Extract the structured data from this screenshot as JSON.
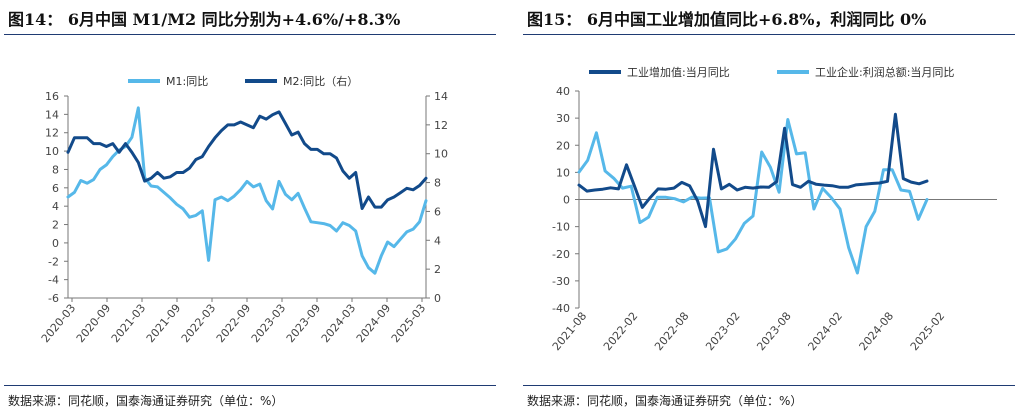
{
  "left": {
    "title": "图14：  6月中国 M1/M2 同比分别为+4.6%/+8.3%",
    "source": "数据来源：同花顺，国泰海通证券研究（单位：%）",
    "chart_data": {
      "type": "line",
      "colors": {
        "M1": "#56b8e9",
        "M2": "#124a8a"
      },
      "x_ticks": [
        "2020-03",
        "2020-09",
        "2021-03",
        "2021-09",
        "2022-03",
        "2022-09",
        "2023-03",
        "2023-09",
        "2024-03",
        "2024-09",
        "2025-03"
      ],
      "y_left_ticks": [
        "16",
        "14",
        "12",
        "10",
        "8",
        "6",
        "4",
        "2",
        "0",
        "-2",
        "-4",
        "-6"
      ],
      "y_right_ticks": [
        "14",
        "12",
        "10",
        "8",
        "6",
        "4",
        "2",
        "0"
      ],
      "ylim_left": [
        -6,
        16
      ],
      "ylim_right": [
        0,
        14
      ],
      "series": [
        {
          "name": "M1:同比",
          "axis": "left",
          "values": [
            5,
            5.5,
            6.8,
            6.5,
            6.9,
            8,
            8.5,
            9.4,
            10.1,
            10.5,
            11.5,
            14.7,
            7.1,
            6.2,
            6.1,
            5.5,
            4.9,
            4.2,
            3.7,
            2.8,
            3,
            3.5,
            -1.9,
            4.7,
            5,
            4.6,
            5.1,
            5.8,
            6.7,
            6.1,
            6.4,
            4.6,
            3.7,
            6.7,
            5.3,
            4.7,
            5.4,
            3.8,
            2.3,
            2.2,
            2.1,
            1.9,
            1.3,
            2.2,
            1.9,
            1.3,
            -1.4,
            -2.7,
            -3.3,
            -1.4,
            0.1,
            -0.4,
            0.4,
            1.2,
            1.5,
            2.3,
            4.6
          ]
        },
        {
          "name": "M2:同比（右）",
          "axis": "right",
          "values": [
            10.1,
            11.1,
            11.1,
            11.1,
            10.7,
            10.7,
            10.5,
            10.7,
            10.1,
            10.7,
            10.1,
            9.4,
            8.1,
            8.3,
            8.7,
            8.3,
            8.4,
            8.7,
            8.7,
            9.0,
            9.6,
            9.8,
            10.5,
            11.1,
            11.6,
            12,
            12,
            12.2,
            12,
            11.8,
            12.6,
            12.4,
            12.7,
            12.9,
            12.1,
            11.3,
            11.5,
            10.7,
            10.3,
            10.3,
            10.0,
            10.0,
            9.7,
            8.8,
            8.3,
            8.7,
            6.2,
            7.0,
            6.3,
            6.3,
            6.8,
            7.0,
            7.3,
            7.6,
            7.5,
            7.8,
            8.3
          ]
        }
      ]
    }
  },
  "right": {
    "title": "图15：  6月中国工业增加值同比+6.8%，利润同比 0%",
    "source": "数据来源：同花顺，国泰海通证券研究（单位：%）",
    "chart_data": {
      "type": "line",
      "colors": {
        "ip": "#124a8a",
        "profit": "#56b8e9"
      },
      "x_ticks": [
        "2021-08",
        "2022-02",
        "2022-08",
        "2023-02",
        "2023-08",
        "2024-02",
        "2024-08",
        "2025-02"
      ],
      "y_ticks": [
        "40",
        "30",
        "20",
        "10",
        "0",
        "-10",
        "-20",
        "-30",
        "-40"
      ],
      "ylim": [
        -40,
        40
      ],
      "series": [
        {
          "name": "工业增加值:当月同比",
          "values": [
            5.3,
            3.1,
            3.5,
            3.8,
            4.3,
            3.9,
            12.8,
            5,
            -2.9,
            0.7,
            3.9,
            3.8,
            4.2,
            6.3,
            5,
            -0.5,
            -10,
            18.5,
            3.9,
            5.6,
            3.5,
            4.5,
            4.2,
            4.6,
            4.5,
            6.6,
            26.3,
            5.5,
            4.5,
            6.7,
            5.6,
            5.3,
            5.1,
            4.5,
            4.5,
            5.4,
            5.6,
            5.9,
            6.1,
            6.7,
            31.4,
            7.7,
            6.4,
            5.8,
            6.8
          ]
        },
        {
          "name": "工业企业:利润总额:当月同比",
          "values": [
            10.1,
            14.5,
            24.6,
            10.5,
            7.8,
            4.2,
            4.9,
            -8.5,
            -6.5,
            0.8,
            0.8,
            0.3,
            -0.9,
            0.9,
            0.5,
            0.6,
            -19.3,
            -18.2,
            -14.5,
            -8.8,
            -6.1,
            17.5,
            11.9,
            2.7,
            29.5,
            16.8,
            17.2,
            -3.5,
            4.1,
            0.7,
            -3.5,
            -17.8,
            -27.1,
            -10.0,
            -4.3,
            11.0,
            11.0,
            3.5,
            3.0,
            -7.3,
            0.0
          ]
        }
      ]
    }
  }
}
